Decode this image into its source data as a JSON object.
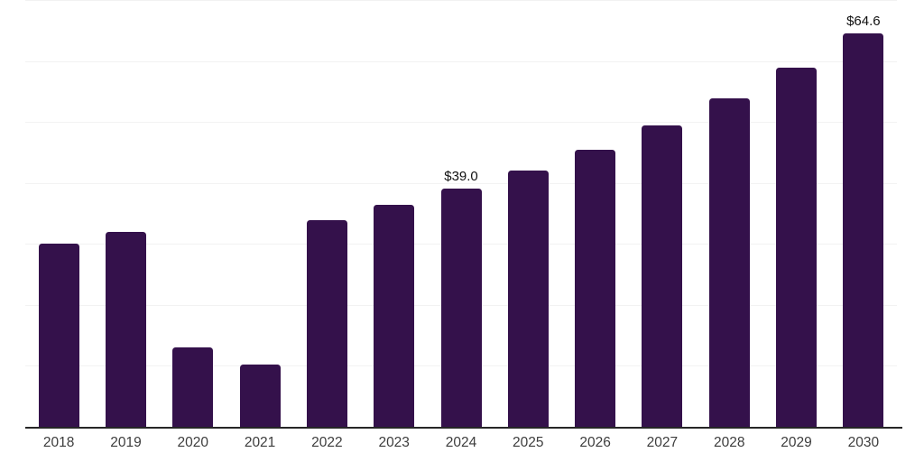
{
  "chart_data": {
    "type": "bar",
    "title": "",
    "xlabel": "",
    "ylabel": "",
    "categories": [
      "2018",
      "2019",
      "2020",
      "2021",
      "2022",
      "2023",
      "2024",
      "2025",
      "2026",
      "2027",
      "2028",
      "2029",
      "2030"
    ],
    "values": [
      30.0,
      32.0,
      13.0,
      10.2,
      33.9,
      36.4,
      39.0,
      42.1,
      45.5,
      49.5,
      53.9,
      58.9,
      64.6
    ],
    "data_labels": {
      "2024": "$39.0",
      "2030": "$64.6"
    },
    "ylim": [
      0,
      70
    ],
    "grid": {
      "horizontal": true,
      "interval": 10
    },
    "y_axis_tick_labels_visible": false,
    "legend_position": "none",
    "colors": {
      "bar": "#34114B",
      "axis_line": "#262626",
      "gridline": "#f2f2f2",
      "data_label": "#111111",
      "tick_label": "#3d3d3d",
      "background": "#ffffff"
    }
  }
}
